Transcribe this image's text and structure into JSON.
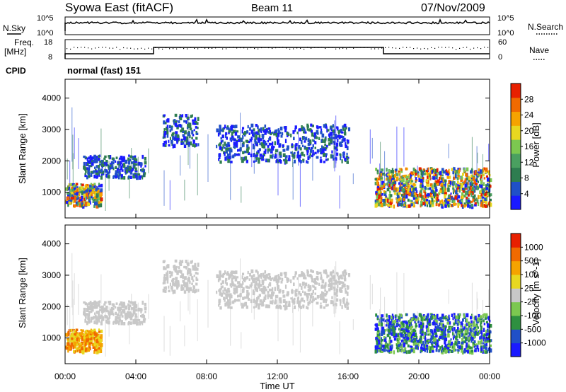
{
  "header": {
    "station": "Syowa East (fitACF)",
    "beam": "Beam 11",
    "date": "07/Nov/2009"
  },
  "panel_labels": {
    "nsky": "N.Sky",
    "nsearch": "N.Search",
    "freq_line1": "Freq.",
    "freq_line2": "[MHz]",
    "nave": "Nave",
    "cpid": "CPID",
    "cpid_value": "normal (fast) 151",
    "nsky_ticks": [
      "10^5",
      "10^0"
    ],
    "nsearch_ticks": [
      "10^5",
      "10^0"
    ],
    "freq_ticks": [
      "18",
      "8"
    ],
    "nave_ticks": [
      "60",
      "0"
    ]
  },
  "colors": {
    "power": [
      "#1a1aff",
      "#2050c8",
      "#2e7d50",
      "#4aa060",
      "#7cc850",
      "#e8d820",
      "#f5a300",
      "#f06a00",
      "#e82000"
    ],
    "velocity": [
      "#e82000",
      "#f06a00",
      "#f5a300",
      "#e8d820",
      "#c8c8c8",
      "#7cc850",
      "#2e9040",
      "#2050c8",
      "#1a1aff"
    ]
  },
  "chart_data": [
    {
      "type": "heatmap",
      "name_role": "power",
      "title": "",
      "xlabel": "",
      "ylabel": "Slant Range [km]",
      "xlim": [
        "00:00",
        "24:00"
      ],
      "ylim": [
        180,
        4600
      ],
      "x_ticks": [
        "00:00",
        "04:00",
        "08:00",
        "12:00",
        "16:00",
        "20:00",
        "00:00"
      ],
      "y_ticks": [
        "1000",
        "2000",
        "3000",
        "4000"
      ],
      "colorbar_label": "Power [dB]",
      "colorbar_ticks": [
        "4",
        "8",
        "12",
        "16",
        "20",
        "24",
        "28"
      ],
      "echo_regions_hours_km": [
        {
          "t": [
            0.0,
            2.0
          ],
          "r": [
            600,
            1300
          ],
          "level": "high"
        },
        {
          "t": [
            1.0,
            4.5
          ],
          "r": [
            1500,
            2200
          ],
          "level": "low"
        },
        {
          "t": [
            5.5,
            7.5
          ],
          "r": [
            2500,
            3500
          ],
          "level": "low"
        },
        {
          "t": [
            8.5,
            16.0
          ],
          "r": [
            2000,
            3200
          ],
          "level": "low"
        },
        {
          "t": [
            17.5,
            24.0
          ],
          "r": [
            600,
            1800
          ],
          "level": "high"
        }
      ]
    },
    {
      "type": "heatmap",
      "name_role": "velocity",
      "title": "",
      "xlabel": "Time UT",
      "ylabel": "Slant Range [km]",
      "xlim": [
        "00:00",
        "24:00"
      ],
      "ylim": [
        180,
        4600
      ],
      "x_ticks": [
        "00:00",
        "04:00",
        "08:00",
        "12:00",
        "16:00",
        "20:00",
        "00:00"
      ],
      "y_ticks": [
        "1000",
        "2000",
        "3000",
        "4000"
      ],
      "colorbar_label": "Velocity [m s^-1]",
      "colorbar_ticks": [
        "1000",
        "500",
        "100",
        "25",
        "-25",
        "-100",
        "-500",
        "-1000"
      ]
    }
  ]
}
